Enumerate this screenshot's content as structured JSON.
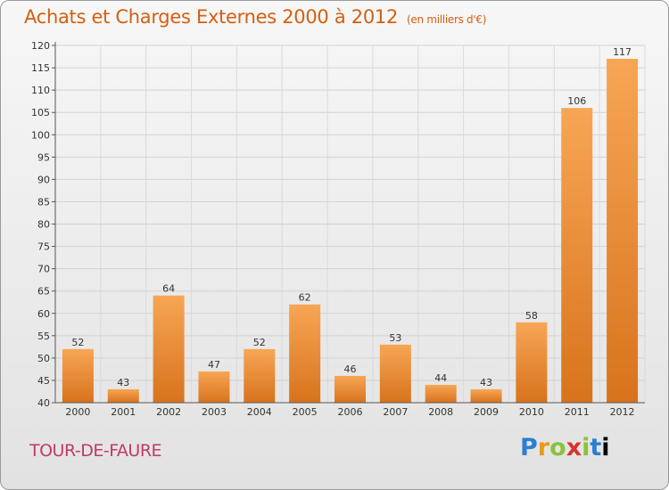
{
  "header": {
    "title": "Achats et Charges Externes 2000 à 2012",
    "subtitle": "(en milliers d'€)"
  },
  "footer": {
    "commune": "TOUR-DE-FAURE",
    "logo_text": "Proxiti"
  },
  "colors": {
    "bar_light": "#f7a655",
    "bar_dark": "#d8731c",
    "title": "#d45f10",
    "commune": "#c03c60"
  },
  "chart_data": {
    "type": "bar",
    "title": "Achats et Charges Externes 2000 à 2012",
    "subtitle": "(en milliers d'€)",
    "categories": [
      "2000",
      "2001",
      "2002",
      "2003",
      "2004",
      "2005",
      "2006",
      "2007",
      "2008",
      "2009",
      "2010",
      "2011",
      "2012"
    ],
    "values": [
      52,
      43,
      64,
      47,
      52,
      62,
      46,
      53,
      44,
      43,
      58,
      106,
      117
    ],
    "ylim": [
      40,
      120
    ],
    "yticks": [
      40,
      45,
      50,
      55,
      60,
      65,
      70,
      75,
      80,
      85,
      90,
      95,
      100,
      105,
      110,
      115,
      120
    ],
    "grid": true,
    "legend": "none"
  }
}
